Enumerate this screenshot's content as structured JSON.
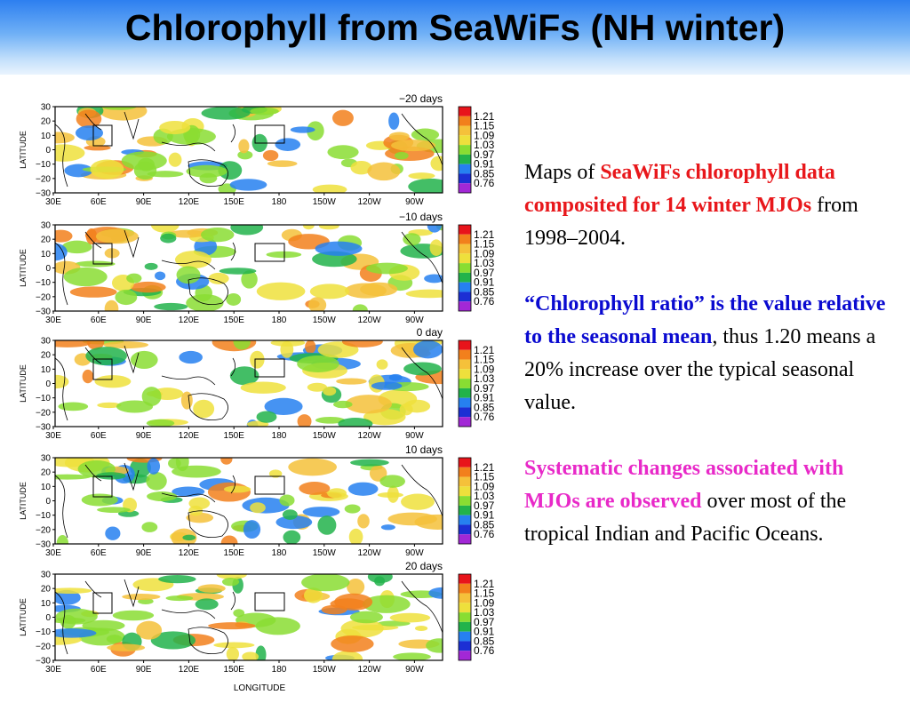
{
  "slide": {
    "title": "Chlorophyll from SeaWiFs (NH winter)"
  },
  "figure": {
    "xlabel": "LONGITUDE",
    "ylabel": "LATITUDE",
    "lat_ticks": [
      "30",
      "20",
      "10",
      "0",
      "−10",
      "−20",
      "−30"
    ],
    "lon_ticks": [
      "30E",
      "60E",
      "90E",
      "120E",
      "150E",
      "180",
      "150W",
      "120W",
      "90W"
    ],
    "legend_values": [
      "1.21",
      "1.15",
      "1.09",
      "1.03",
      "0.97",
      "0.91",
      "0.85",
      "0.76"
    ],
    "legend_colors": [
      "#e8141b",
      "#f2801c",
      "#f5c13a",
      "#eee03c",
      "#89dd32",
      "#22b34b",
      "#2680f0",
      "#1c2fd4",
      "#a228d6"
    ],
    "panels": [
      {
        "label": "−20  days"
      },
      {
        "label": "−10  days"
      },
      {
        "label": "0  day"
      },
      {
        "label": "10  days"
      },
      {
        "label": "20  days"
      }
    ]
  },
  "caption": {
    "p1_plain_a": "Maps of ",
    "p1_red": "SeaWiFs chlorophyll data composited for 14 winter MJOs",
    "p1_plain_b": " from 1998–2004.",
    "p2_blue": "“Chlorophyll  ratio” is the value relative to the seasonal mean",
    "p2_plain": ", thus 1.20 means a 20% increase over the typical seasonal value.",
    "p3_magenta": "Systematic changes associated with MJOs are observed",
    "p3_plain": " over most of the tropical Indian and Pacific Oceans."
  }
}
